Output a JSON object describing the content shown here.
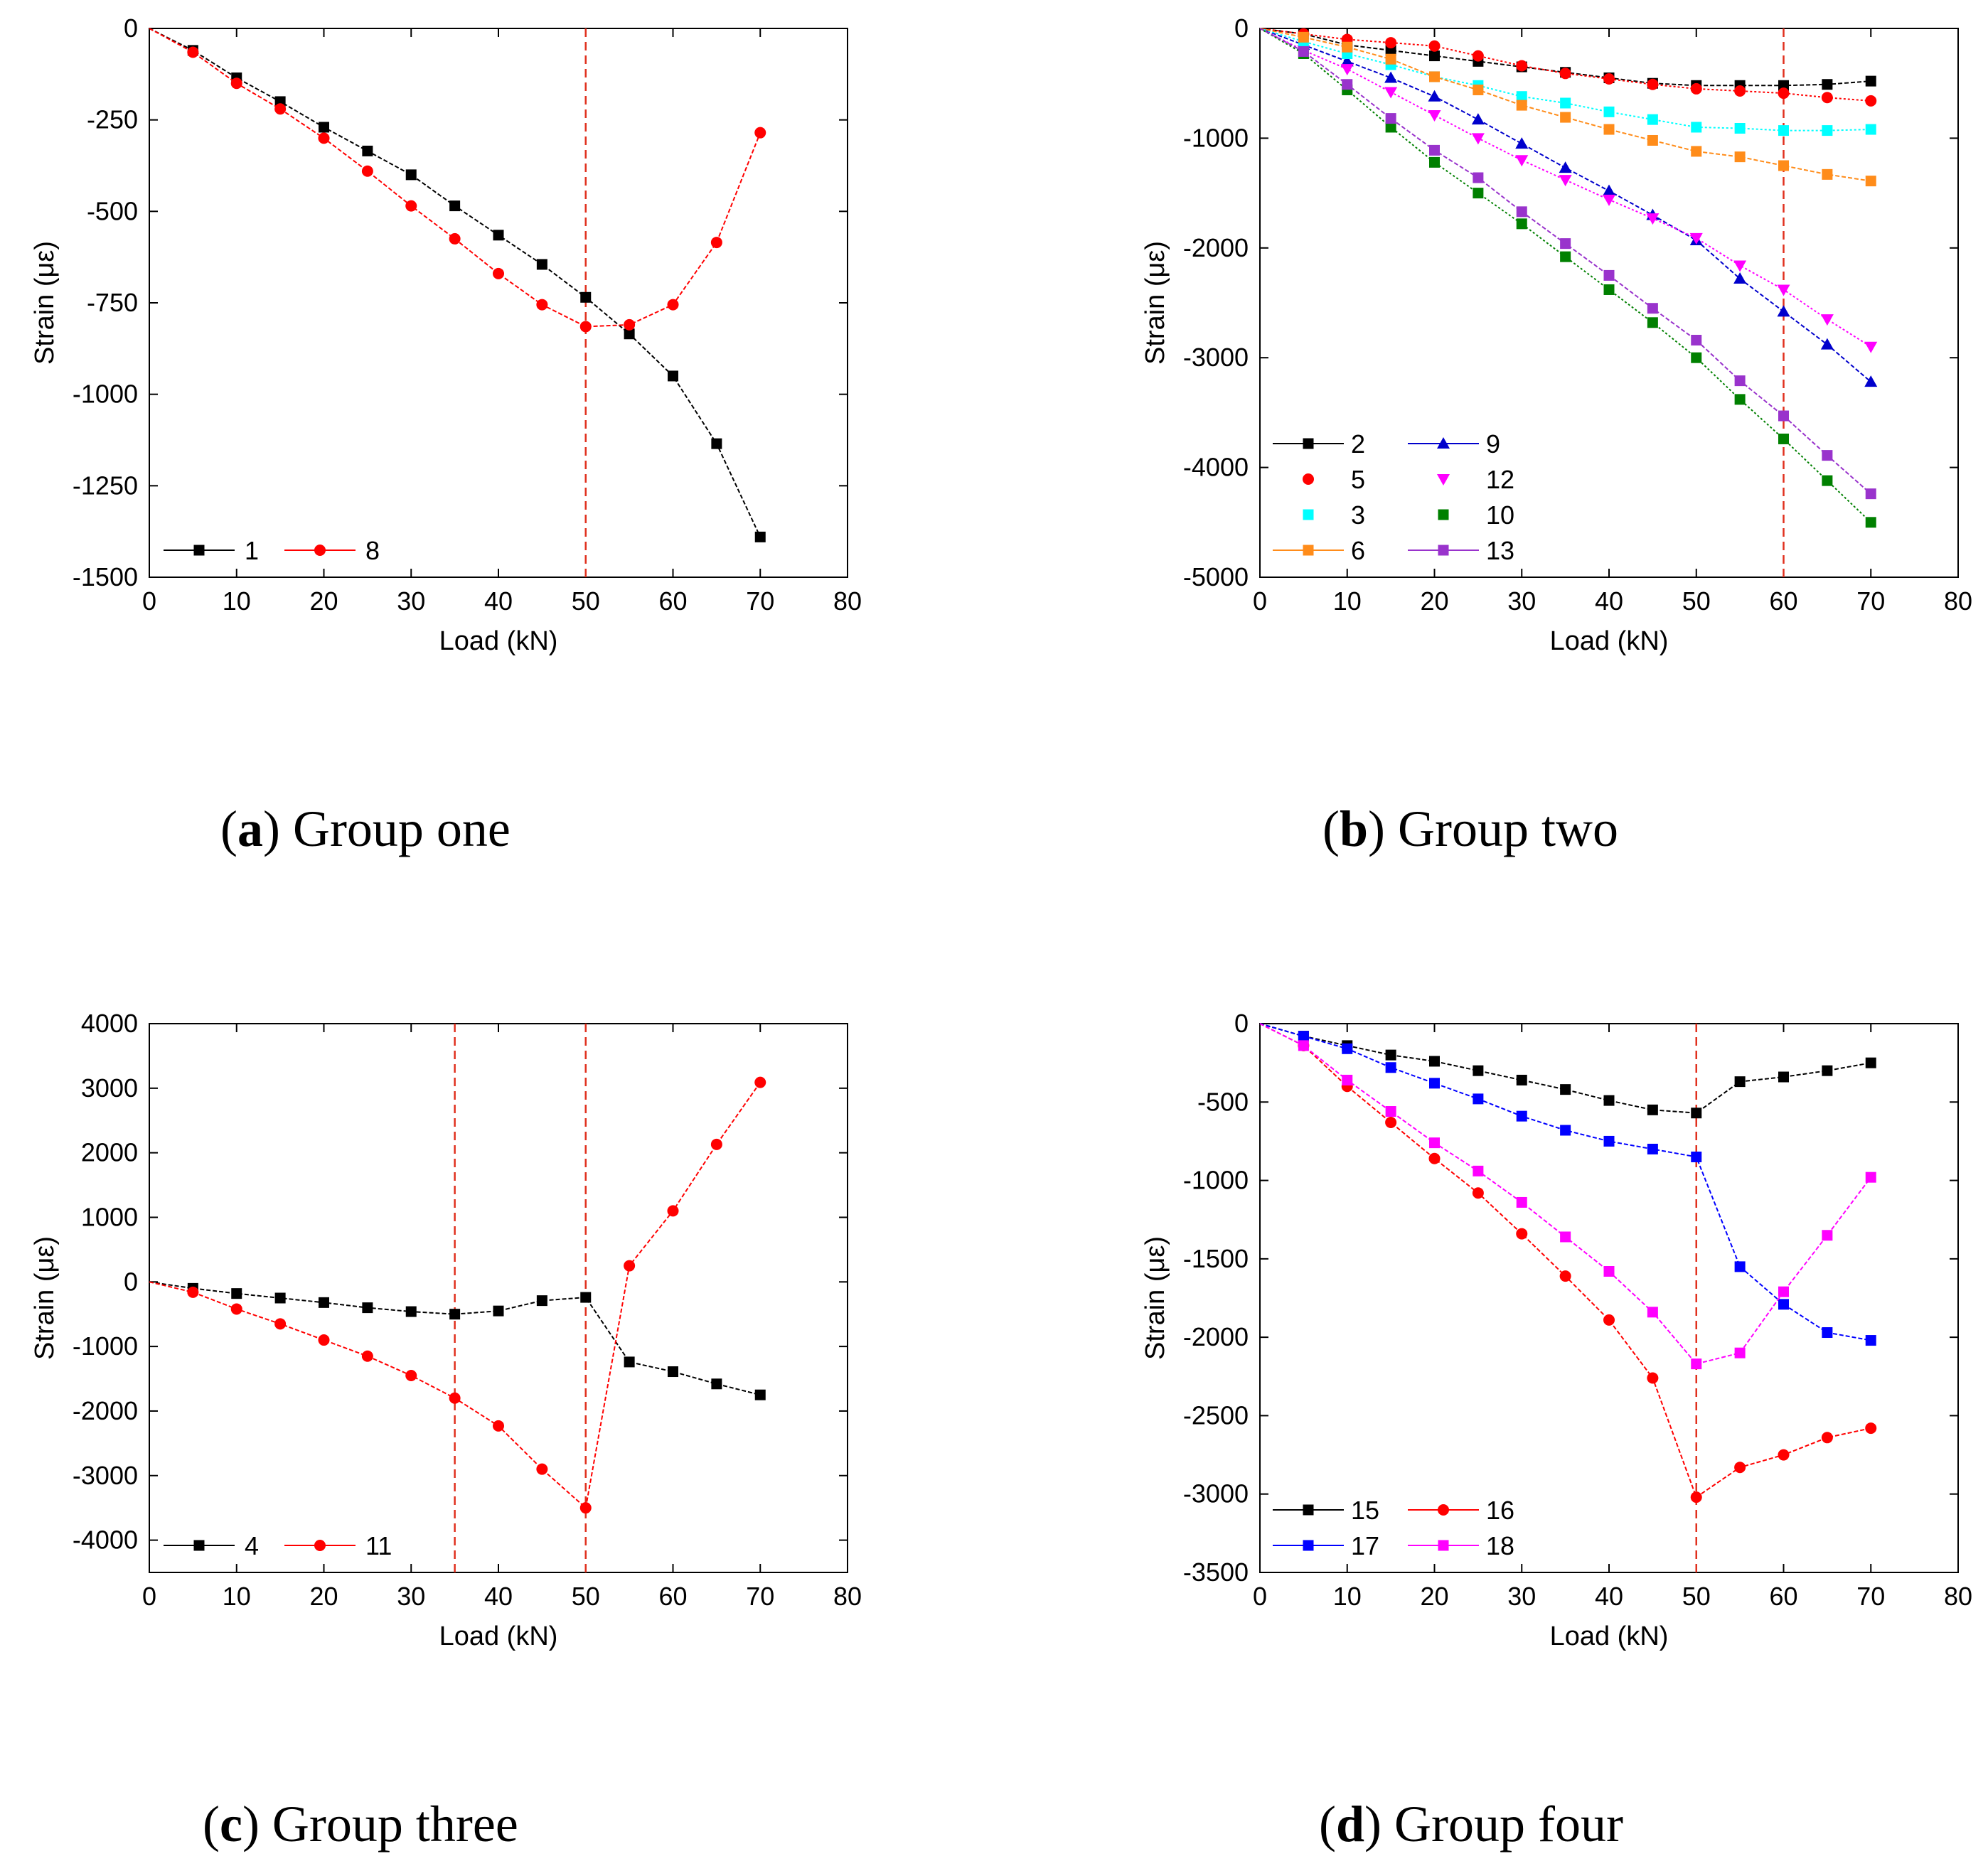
{
  "chart_data": [
    {
      "type": "line",
      "caption_letter": "a",
      "caption_rest": ") Group one",
      "caption_open": "(",
      "xlabel": "Load (kN)",
      "ylabel": "Strain (με)",
      "xlim": [
        0,
        80
      ],
      "ylim": [
        -1500,
        0
      ],
      "xticks": [
        0,
        10,
        20,
        30,
        40,
        50,
        60,
        70,
        80
      ],
      "yticks": [
        0,
        -250,
        -500,
        -750,
        -1000,
        -1250,
        -1500
      ],
      "vlines": [
        50
      ],
      "legend_position": "bottom-left",
      "legend_layout": "inline",
      "series": [
        {
          "name": "1",
          "color": "#000000",
          "marker": "square",
          "x": [
            0,
            5,
            10,
            15,
            20,
            25,
            30,
            35,
            40,
            45,
            50,
            55,
            60,
            65,
            70
          ],
          "values": [
            0,
            -60,
            -135,
            -200,
            -270,
            -335,
            -400,
            -485,
            -565,
            -645,
            -735,
            -835,
            -950,
            -1135,
            -1390
          ]
        },
        {
          "name": "8",
          "color": "#ff0000",
          "marker": "circle",
          "x": [
            0,
            5,
            10,
            15,
            20,
            25,
            30,
            35,
            40,
            45,
            50,
            55,
            60,
            65,
            70
          ],
          "values": [
            0,
            -65,
            -150,
            -220,
            -300,
            -390,
            -485,
            -575,
            -670,
            -755,
            -815,
            -810,
            -755,
            -585,
            -285
          ]
        }
      ]
    },
    {
      "type": "line",
      "caption_letter": "b",
      "caption_rest": ") Group two",
      "caption_open": "(",
      "xlabel": "Load (kN)",
      "ylabel": "Strain (με)",
      "xlim": [
        0,
        80
      ],
      "ylim": [
        -5000,
        0
      ],
      "xticks": [
        0,
        10,
        20,
        30,
        40,
        50,
        60,
        70,
        80
      ],
      "yticks": [
        0,
        -1000,
        -2000,
        -3000,
        -4000,
        -5000
      ],
      "vlines": [
        60
      ],
      "legend_position": "bottom-left",
      "legend_layout": "grid",
      "series": [
        {
          "name": "2",
          "color": "#000000",
          "marker": "square",
          "line": true,
          "x": [
            0,
            5,
            10,
            15,
            20,
            25,
            30,
            35,
            40,
            45,
            50,
            55,
            60,
            65,
            70
          ],
          "values": [
            0,
            -50,
            -150,
            -200,
            -250,
            -300,
            -350,
            -400,
            -450,
            -500,
            -520,
            -520,
            -520,
            -510,
            -480
          ]
        },
        {
          "name": "9",
          "color": "#0000cc",
          "marker": "triangle-up",
          "line": true,
          "x": [
            0,
            5,
            10,
            15,
            20,
            25,
            30,
            35,
            40,
            45,
            50,
            55,
            60,
            65,
            70
          ],
          "values": [
            0,
            -150,
            -300,
            -450,
            -620,
            -830,
            -1050,
            -1270,
            -1480,
            -1700,
            -1930,
            -2280,
            -2580,
            -2880,
            -3220
          ]
        },
        {
          "name": "5",
          "color": "#ff0000",
          "marker": "circle",
          "line": false,
          "x": [
            0,
            5,
            10,
            15,
            20,
            25,
            30,
            35,
            40,
            45,
            50,
            55,
            60,
            65,
            70
          ],
          "values": [
            0,
            -50,
            -100,
            -130,
            -160,
            -250,
            -340,
            -410,
            -460,
            -510,
            -550,
            -570,
            -590,
            -630,
            -660
          ]
        },
        {
          "name": "12",
          "color": "#ff00ff",
          "marker": "triangle-down",
          "line": false,
          "x": [
            0,
            5,
            10,
            15,
            20,
            25,
            30,
            35,
            40,
            45,
            50,
            55,
            60,
            65,
            70
          ],
          "values": [
            0,
            -200,
            -370,
            -580,
            -790,
            -1000,
            -1200,
            -1380,
            -1560,
            -1730,
            -1910,
            -2160,
            -2380,
            -2650,
            -2900
          ]
        },
        {
          "name": "3",
          "color": "#00ffff",
          "marker": "square",
          "line": false,
          "x": [
            0,
            5,
            10,
            15,
            20,
            25,
            30,
            35,
            40,
            45,
            50,
            55,
            60,
            65,
            70
          ],
          "values": [
            0,
            -120,
            -230,
            -330,
            -440,
            -520,
            -620,
            -680,
            -760,
            -830,
            -900,
            -910,
            -930,
            -930,
            -920
          ]
        },
        {
          "name": "10",
          "color": "#008000",
          "marker": "square",
          "line": false,
          "x": [
            0,
            5,
            10,
            15,
            20,
            25,
            30,
            35,
            40,
            45,
            50,
            55,
            60,
            65,
            70
          ],
          "values": [
            0,
            -230,
            -560,
            -900,
            -1220,
            -1500,
            -1780,
            -2080,
            -2380,
            -2680,
            -3000,
            -3380,
            -3740,
            -4120,
            -4500
          ]
        },
        {
          "name": "6",
          "color": "#ff8c1a",
          "marker": "square",
          "line": true,
          "x": [
            0,
            5,
            10,
            15,
            20,
            25,
            30,
            35,
            40,
            45,
            50,
            55,
            60,
            65,
            70
          ],
          "values": [
            0,
            -80,
            -170,
            -280,
            -440,
            -560,
            -700,
            -810,
            -920,
            -1020,
            -1120,
            -1170,
            -1250,
            -1330,
            -1390
          ]
        },
        {
          "name": "13",
          "color": "#9933cc",
          "marker": "square",
          "line": true,
          "x": [
            0,
            5,
            10,
            15,
            20,
            25,
            30,
            35,
            40,
            45,
            50,
            55,
            60,
            65,
            70
          ],
          "values": [
            0,
            -210,
            -510,
            -820,
            -1110,
            -1360,
            -1670,
            -1960,
            -2250,
            -2550,
            -2840,
            -3210,
            -3530,
            -3890,
            -4240
          ]
        }
      ]
    },
    {
      "type": "line",
      "caption_letter": "c",
      "caption_rest": ") Group three",
      "caption_open": "(",
      "xlabel": "Load (kN)",
      "ylabel": "Strain (με)",
      "xlim": [
        0,
        80
      ],
      "ylim": [
        -4500,
        4000
      ],
      "xticks": [
        0,
        10,
        20,
        30,
        40,
        50,
        60,
        70,
        80
      ],
      "yticks": [
        4000,
        3000,
        2000,
        1000,
        0,
        -1000,
        -2000,
        -3000,
        -4000
      ],
      "vlines": [
        35,
        50
      ],
      "legend_position": "bottom-left",
      "legend_layout": "inline",
      "series": [
        {
          "name": "4",
          "color": "#000000",
          "marker": "square",
          "x": [
            0,
            5,
            10,
            15,
            20,
            25,
            30,
            35,
            40,
            45,
            50,
            55,
            60,
            65,
            70
          ],
          "values": [
            0,
            -100,
            -180,
            -250,
            -320,
            -400,
            -460,
            -500,
            -450,
            -290,
            -240,
            -1240,
            -1390,
            -1580,
            -1750
          ]
        },
        {
          "name": "11",
          "color": "#ff0000",
          "marker": "circle",
          "x": [
            0,
            5,
            10,
            15,
            20,
            25,
            30,
            35,
            40,
            45,
            50,
            55,
            60,
            65,
            70
          ],
          "values": [
            0,
            -160,
            -420,
            -650,
            -900,
            -1150,
            -1450,
            -1800,
            -2230,
            -2900,
            -3500,
            250,
            1100,
            2130,
            3090
          ]
        }
      ]
    },
    {
      "type": "line",
      "caption_letter": "d",
      "caption_rest": ") Group four",
      "caption_open": "(",
      "xlabel": "Load (kN)",
      "ylabel": "Strain (με)",
      "xlim": [
        0,
        80
      ],
      "ylim": [
        -3500,
        0
      ],
      "xticks": [
        0,
        10,
        20,
        30,
        40,
        50,
        60,
        70,
        80
      ],
      "yticks": [
        0,
        -500,
        -1000,
        -1500,
        -2000,
        -2500,
        -3000,
        -3500
      ],
      "vlines": [
        50
      ],
      "legend_position": "bottom-left",
      "legend_layout": "grid",
      "series": [
        {
          "name": "15",
          "color": "#000000",
          "marker": "square",
          "x": [
            0,
            5,
            10,
            15,
            20,
            25,
            30,
            35,
            40,
            45,
            50,
            55,
            60,
            65,
            70
          ],
          "values": [
            0,
            -80,
            -140,
            -200,
            -240,
            -300,
            -360,
            -420,
            -490,
            -550,
            -570,
            -370,
            -340,
            -300,
            -250
          ]
        },
        {
          "name": "16",
          "color": "#ff0000",
          "marker": "circle",
          "x": [
            0,
            5,
            10,
            15,
            20,
            25,
            30,
            35,
            40,
            45,
            50,
            55,
            60,
            65,
            70
          ],
          "values": [
            0,
            -140,
            -400,
            -630,
            -860,
            -1080,
            -1340,
            -1610,
            -1890,
            -2260,
            -3020,
            -2830,
            -2750,
            -2640,
            -2580
          ]
        },
        {
          "name": "17",
          "color": "#0000ff",
          "marker": "square",
          "x": [
            0,
            5,
            10,
            15,
            20,
            25,
            30,
            35,
            40,
            45,
            50,
            55,
            60,
            65,
            70
          ],
          "values": [
            0,
            -80,
            -160,
            -280,
            -380,
            -480,
            -590,
            -680,
            -750,
            -800,
            -850,
            -1550,
            -1790,
            -1970,
            -2020
          ]
        },
        {
          "name": "18",
          "color": "#ff00ff",
          "marker": "square",
          "x": [
            0,
            5,
            10,
            15,
            20,
            25,
            30,
            35,
            40,
            45,
            50,
            55,
            60,
            65,
            70
          ],
          "values": [
            0,
            -140,
            -360,
            -560,
            -760,
            -940,
            -1140,
            -1360,
            -1580,
            -1840,
            -2170,
            -2100,
            -1710,
            -1350,
            -980
          ]
        }
      ]
    }
  ]
}
